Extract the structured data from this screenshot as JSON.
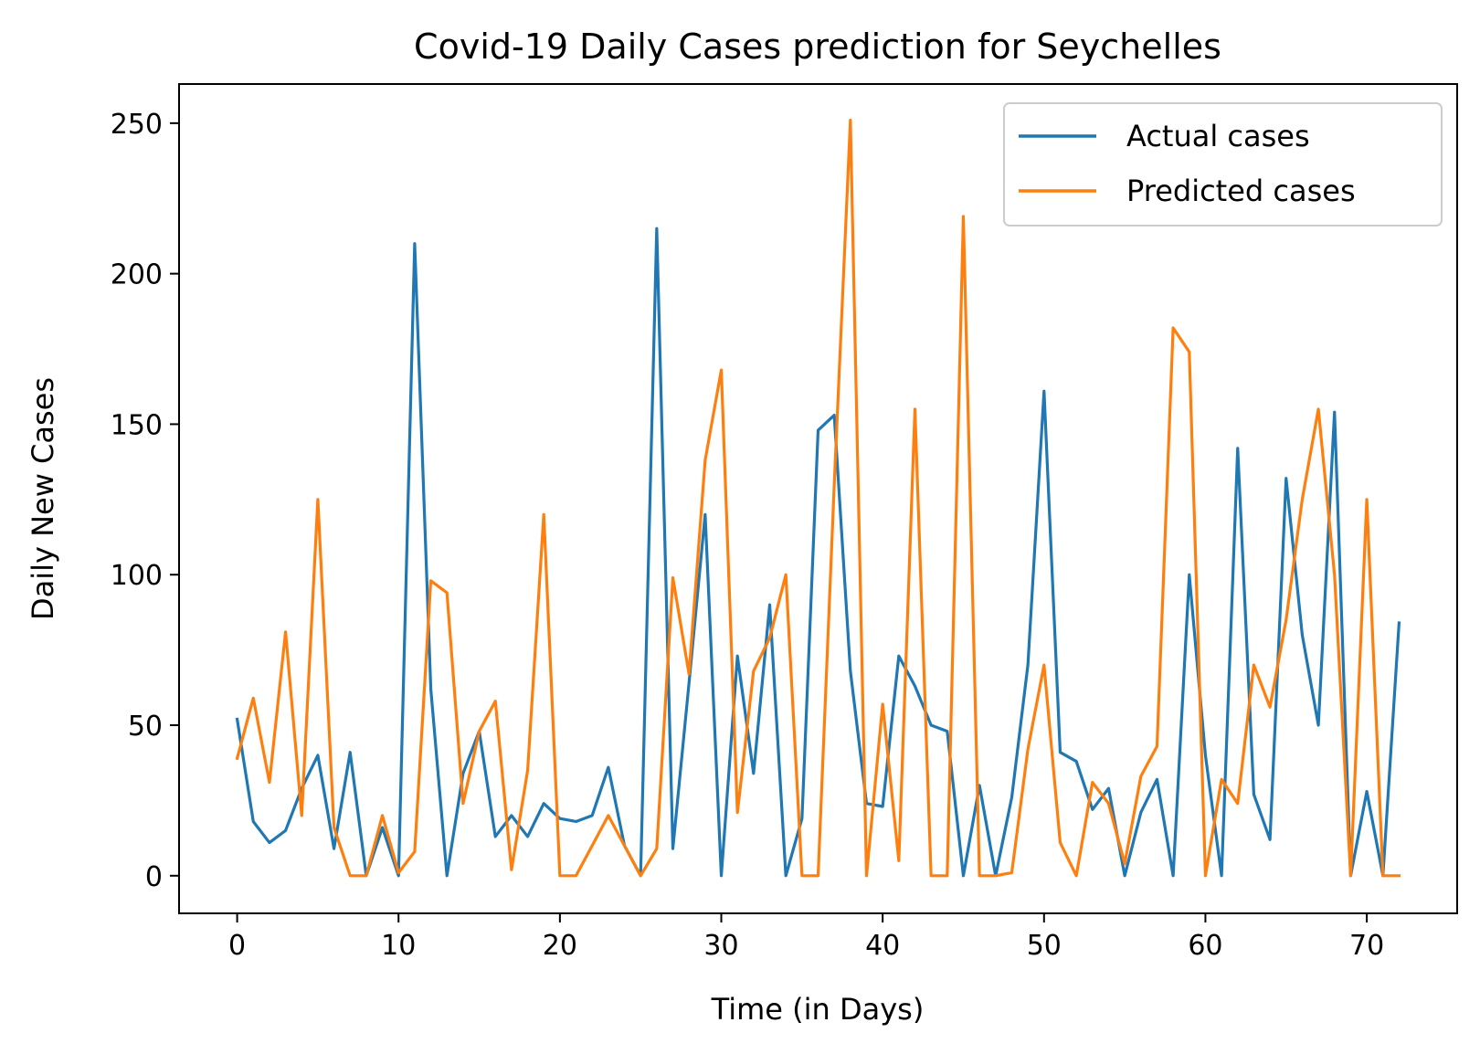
{
  "chart_data": {
    "type": "line",
    "title": "Covid-19 Daily Cases prediction for Seychelles",
    "xlabel": "Time (in Days)",
    "ylabel": "Daily New Cases",
    "xlim": [
      -3.6,
      75.6
    ],
    "ylim": [
      -12.5,
      263
    ],
    "xticks": [
      0,
      10,
      20,
      30,
      40,
      50,
      60,
      70
    ],
    "yticks": [
      0,
      50,
      100,
      150,
      200,
      250
    ],
    "grid": false,
    "legend_position": "top-right",
    "x": [
      0,
      1,
      2,
      3,
      4,
      5,
      6,
      7,
      8,
      9,
      10,
      11,
      12,
      13,
      14,
      15,
      16,
      17,
      18,
      19,
      20,
      21,
      22,
      23,
      24,
      25,
      26,
      27,
      28,
      29,
      30,
      31,
      32,
      33,
      34,
      35,
      36,
      37,
      38,
      39,
      40,
      41,
      42,
      43,
      44,
      45,
      46,
      47,
      48,
      49,
      50,
      51,
      52,
      53,
      54,
      55,
      56,
      57,
      58,
      59,
      60,
      61,
      62,
      63,
      64,
      65,
      66,
      67,
      68,
      69,
      70,
      71,
      72
    ],
    "series": [
      {
        "name": "Actual cases",
        "color": "#1f77b4",
        "values": [
          52,
          18,
          11,
          15,
          29,
          40,
          9,
          41,
          0,
          16,
          0,
          210,
          62,
          0,
          34,
          48,
          13,
          20,
          13,
          24,
          19,
          18,
          20,
          36,
          10,
          0,
          215,
          9,
          64,
          120,
          0,
          73,
          34,
          90,
          0,
          19,
          148,
          153,
          68,
          24,
          23,
          73,
          63,
          50,
          48,
          0,
          30,
          0,
          26,
          70,
          161,
          41,
          38,
          22,
          29,
          0,
          21,
          32,
          0,
          100,
          40,
          0,
          142,
          27,
          12,
          132,
          80,
          50,
          154,
          0,
          28,
          0,
          84
        ]
      },
      {
        "name": "Predicted cases",
        "color": "#ff7f0e",
        "values": [
          39,
          59,
          31,
          81,
          20,
          125,
          16,
          0,
          0,
          20,
          1,
          8,
          98,
          94,
          24,
          48,
          58,
          2,
          35,
          120,
          0,
          0,
          10,
          20,
          10,
          0,
          9,
          99,
          67,
          138,
          168,
          21,
          68,
          79,
          100,
          0,
          0,
          130,
          251,
          0,
          57,
          5,
          155,
          0,
          0,
          219,
          0,
          0,
          1,
          42,
          70,
          11,
          0,
          31,
          24,
          4,
          33,
          43,
          182,
          174,
          0,
          32,
          24,
          70,
          56,
          85,
          125,
          155,
          100,
          0,
          125,
          0,
          0
        ]
      }
    ]
  }
}
